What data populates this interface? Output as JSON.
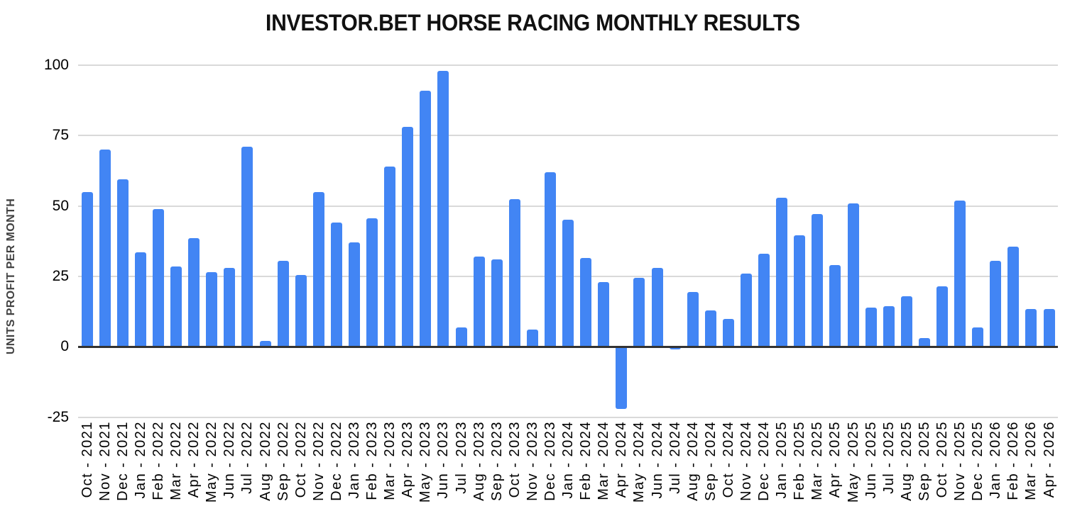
{
  "chart_data": {
    "type": "bar",
    "title": "INVESTOR.BET HORSE RACING MONTHLY RESULTS",
    "ylabel": "UNITS PROFIT PER MONTH",
    "ylim": [
      -25,
      100
    ],
    "yticks": [
      100,
      75,
      50,
      25,
      0,
      -25
    ],
    "grid": true,
    "legend_position": "none",
    "colors": {
      "bar": "#4285F4",
      "grid": "#d9d9d9",
      "zero_axis": "#333333",
      "tick_label": "#000000",
      "axis_title": "#424242",
      "title": "#111111",
      "background": "#ffffff"
    },
    "categories": [
      "Oct - 2021",
      "Nov - 2021",
      "Dec - 2021",
      "Jan - 2022",
      "Feb - 2022",
      "Mar - 2022",
      "Apr - 2022",
      "May - 2022",
      "Jun - 2022",
      "Jul - 2022",
      "Aug - 2022",
      "Sep - 2022",
      "Oct - 2022",
      "Nov - 2022",
      "Dec - 2022",
      "Jan - 2023",
      "Feb - 2023",
      "Mar - 2023",
      "Apr - 2023",
      "May - 2023",
      "Jun - 2023",
      "Jul - 2023",
      "Aug - 2023",
      "Sep - 2023",
      "Oct - 2023",
      "Nov - 2023",
      "Dec - 2023",
      "Jan - 2024",
      "Feb - 2024",
      "Mar - 2024",
      "Apr - 2024",
      "May - 2024",
      "Jun - 2024",
      "Jul - 2024",
      "Aug - 2024",
      "Sep - 2024",
      "Oct - 2024",
      "Nov - 2024",
      "Dec - 2024",
      "Jan - 2025",
      "Feb - 2025",
      "Mar - 2025",
      "Apr - 2025",
      "May - 2025",
      "Jun - 2025",
      "Jul - 2025",
      "Aug - 2025",
      "Sep - 2025",
      "Oct - 2025",
      "Nov - 2025",
      "Dec - 2025",
      "Jan - 2026",
      "Feb - 2026",
      "Mar - 2026",
      "Apr - 2026"
    ],
    "values": [
      55,
      70,
      59.5,
      33.5,
      49,
      28.5,
      38.5,
      26.5,
      28,
      71,
      2,
      30.5,
      25.5,
      55,
      44,
      37,
      45.5,
      64,
      78,
      91,
      98,
      7,
      32,
      31,
      52.5,
      6,
      62,
      45,
      31.5,
      23,
      -22,
      24.5,
      28,
      -1,
      19.5,
      13,
      10,
      26,
      33,
      53,
      39.5,
      47,
      29,
      51,
      14,
      14.5,
      18,
      3,
      21.5,
      52,
      7,
      30.5,
      35.5,
      13.5,
      13.5
    ]
  }
}
